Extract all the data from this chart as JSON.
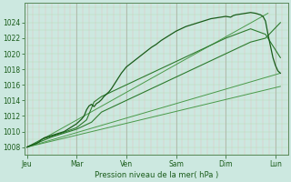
{
  "xlabel": "Pression niveau de la mer( hPa )",
  "background_color": "#cce8e0",
  "grid_color_h": "#b8ddb8",
  "grid_color_v": "#e8c0c0",
  "line_color_dark": "#1a5c1a",
  "line_color_mid": "#2d7a2d",
  "line_color_light": "#4a9a4a",
  "ylim": [
    1007.0,
    1026.5
  ],
  "yticks": [
    1008,
    1010,
    1012,
    1014,
    1016,
    1018,
    1020,
    1022,
    1024
  ],
  "ytick_fontsize": 5.5,
  "xtick_fontsize": 5.5,
  "xlabel_fontsize": 6.0,
  "x_days": [
    "Jeu",
    "Mar",
    "Ven",
    "Sam",
    "Dim",
    "Lun"
  ],
  "x_day_pos": [
    0,
    1,
    2,
    3,
    4,
    5
  ],
  "xlim": [
    -0.05,
    5.25
  ],
  "n_days": 6,
  "subdivisions_per_day": 8,
  "main_line_x": [
    0.0,
    0.04,
    0.08,
    0.12,
    0.16,
    0.2,
    0.25,
    0.3,
    0.35,
    0.4,
    0.45,
    0.5,
    0.55,
    0.6,
    0.65,
    0.7,
    0.75,
    0.8,
    0.85,
    0.9,
    0.95,
    1.0,
    1.05,
    1.1,
    1.15,
    1.2,
    1.25,
    1.3,
    1.35,
    1.4,
    1.45,
    1.5,
    1.55,
    1.6,
    1.65,
    1.7,
    1.75,
    1.8,
    1.85,
    1.9,
    1.95,
    2.0,
    2.1,
    2.2,
    2.3,
    2.4,
    2.5,
    2.6,
    2.7,
    2.8,
    2.9,
    3.0,
    3.1,
    3.2,
    3.3,
    3.4,
    3.5,
    3.6,
    3.7,
    3.8,
    3.9,
    4.0,
    4.1,
    4.15,
    4.2,
    4.3,
    4.4,
    4.5,
    4.6,
    4.65,
    4.7,
    4.75,
    4.8,
    4.85,
    4.9,
    4.95,
    5.0,
    5.05,
    5.1
  ],
  "main_line_y": [
    1008.0,
    1008.1,
    1008.2,
    1008.3,
    1008.4,
    1008.5,
    1008.7,
    1009.0,
    1009.2,
    1009.3,
    1009.4,
    1009.5,
    1009.6,
    1009.7,
    1009.8,
    1009.9,
    1010.0,
    1010.2,
    1010.4,
    1010.6,
    1010.8,
    1011.0,
    1011.3,
    1011.6,
    1012.0,
    1012.8,
    1013.3,
    1013.5,
    1013.2,
    1013.6,
    1013.8,
    1014.1,
    1014.5,
    1014.8,
    1015.1,
    1015.5,
    1016.0,
    1016.5,
    1017.0,
    1017.5,
    1017.9,
    1018.3,
    1018.8,
    1019.3,
    1019.8,
    1020.3,
    1020.8,
    1021.2,
    1021.7,
    1022.1,
    1022.5,
    1022.9,
    1023.2,
    1023.5,
    1023.7,
    1023.9,
    1024.1,
    1024.3,
    1024.5,
    1024.6,
    1024.7,
    1024.8,
    1024.7,
    1024.9,
    1025.0,
    1025.1,
    1025.2,
    1025.3,
    1025.2,
    1025.1,
    1025.0,
    1024.8,
    1024.2,
    1022.5,
    1021.0,
    1019.5,
    1018.5,
    1017.8,
    1017.5
  ],
  "line2_x": [
    0.0,
    0.3,
    0.7,
    1.0,
    1.2,
    1.35,
    1.5,
    2.0,
    2.5,
    3.0,
    3.5,
    4.0,
    4.5,
    4.8,
    5.1
  ],
  "line2_y": [
    1008.0,
    1009.0,
    1009.8,
    1010.5,
    1011.5,
    1013.8,
    1014.5,
    1016.0,
    1017.5,
    1019.0,
    1020.5,
    1022.0,
    1023.2,
    1022.5,
    1019.5
  ],
  "line3_x": [
    0.0,
    0.5,
    1.0,
    1.3,
    1.5,
    2.0,
    2.5,
    3.0,
    3.5,
    4.0,
    4.5,
    4.8,
    5.1
  ],
  "line3_y": [
    1008.0,
    1009.3,
    1010.3,
    1011.2,
    1012.5,
    1014.0,
    1015.5,
    1017.0,
    1018.5,
    1020.0,
    1021.5,
    1022.0,
    1024.0
  ],
  "trend1_x": [
    0.0,
    5.1
  ],
  "trend1_y": [
    1008.0,
    1017.5
  ],
  "trend2_x": [
    0.0,
    5.1
  ],
  "trend2_y": [
    1008.0,
    1015.8
  ],
  "trend3_x": [
    0.25,
    4.85
  ],
  "trend3_y": [
    1008.8,
    1025.2
  ]
}
